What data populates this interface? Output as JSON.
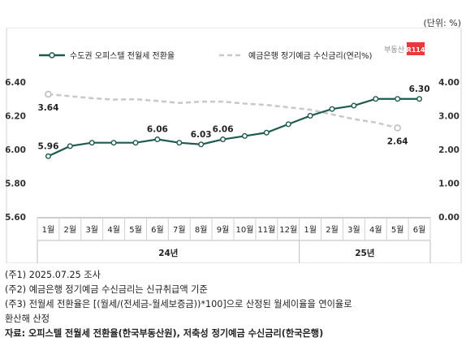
{
  "unit": "(단위: %)",
  "brand": {
    "text": "부동산",
    "badge": "R114",
    "badge_color": "#e8383d"
  },
  "chart_data": {
    "type": "line",
    "categories": [
      "1월",
      "2월",
      "3월",
      "4월",
      "5월",
      "6월",
      "7월",
      "8월",
      "9월",
      "10월",
      "11월",
      "12월",
      "1월",
      "2월",
      "3월",
      "4월",
      "5월",
      "6월"
    ],
    "year_groups": [
      {
        "label": "24년",
        "start": 0,
        "end": 11
      },
      {
        "label": "25년",
        "start": 12,
        "end": 17
      }
    ],
    "series": [
      {
        "name": "수도권 오피스텔 전월세 전환율",
        "axis": "left",
        "style": "solid",
        "color": "#1e5a4e",
        "values": [
          5.96,
          6.02,
          6.04,
          6.04,
          6.04,
          6.06,
          6.04,
          6.03,
          6.06,
          6.08,
          6.1,
          6.15,
          6.2,
          6.24,
          6.26,
          6.3,
          6.3,
          6.3
        ],
        "data_labels": {
          "0": "5.96",
          "5": "6.06",
          "7": "6.03",
          "8": "6.06",
          "17": "6.30"
        }
      },
      {
        "name": "예금은행 정기예금 수신금리(연리%)",
        "axis": "right",
        "style": "dashed",
        "color": "#c8c8c8",
        "values": [
          3.64,
          3.58,
          3.52,
          3.48,
          3.49,
          3.44,
          3.38,
          3.42,
          3.42,
          3.36,
          3.32,
          3.25,
          3.18,
          3.04,
          2.9,
          2.8,
          2.64,
          null
        ],
        "data_labels": {
          "0": "3.64",
          "16": "2.64"
        }
      }
    ],
    "y_left": {
      "min": 5.6,
      "max": 6.4,
      "ticks": [
        "5.60",
        "5.80",
        "6.00",
        "6.20",
        "6.40"
      ]
    },
    "y_right": {
      "min": 0,
      "max": 4,
      "ticks": [
        "0.00",
        "1.00",
        "2.00",
        "3.00",
        "4.00"
      ]
    },
    "grid": false,
    "legend_position": "top"
  },
  "notes": [
    "(주1) 2025.07.25 조사",
    "(주2) 예금은행 정기예금 수신금리는 신규취급액 기준",
    "(주3) 전월세 전환율은 [(월세/(전세금-월세보증금))*100]으로 산정된 월세이율을 연이율로",
    "환산해 산정"
  ],
  "source": "자료: 오피스텔 전월세 전환율(한국부동산원), 저축성 정기예금 수신금리(한국은행)"
}
